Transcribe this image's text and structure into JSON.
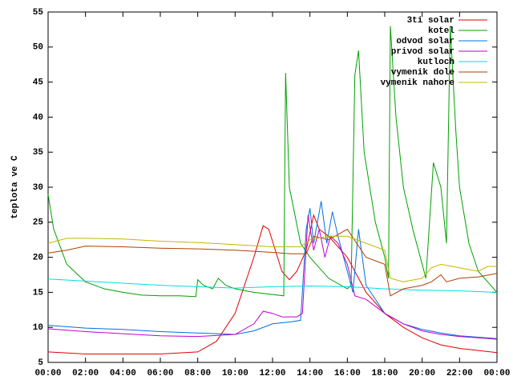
{
  "chart_data": {
    "type": "line",
    "ylabel": "teplota ve C",
    "xlim": [
      0,
      24
    ],
    "ylim": [
      5,
      55
    ],
    "xticks": [
      {
        "value": 0,
        "label": "00:00"
      },
      {
        "value": 2,
        "label": "02:00"
      },
      {
        "value": 4,
        "label": "04:00"
      },
      {
        "value": 6,
        "label": "06:00"
      },
      {
        "value": 8,
        "label": "08:00"
      },
      {
        "value": 10,
        "label": "10:00"
      },
      {
        "value": 12,
        "label": "12:00"
      },
      {
        "value": 14,
        "label": "14:00"
      },
      {
        "value": 16,
        "label": "16:00"
      },
      {
        "value": 18,
        "label": "18:00"
      },
      {
        "value": 20,
        "label": "20:00"
      },
      {
        "value": 22,
        "label": "22:00"
      },
      {
        "value": 24,
        "label": "00:00"
      }
    ],
    "yticks": [
      5,
      10,
      15,
      20,
      25,
      30,
      35,
      40,
      45,
      50,
      55
    ],
    "legend": "top-right",
    "series": [
      {
        "name": "3ti solar",
        "color": "#e00000",
        "x": [
          0,
          2,
          4,
          6,
          8,
          9,
          10,
          11,
          11.5,
          11.8,
          12.5,
          12.9,
          13.3,
          13.8,
          14.2,
          14.5,
          15,
          16,
          17,
          18,
          19,
          20,
          21,
          22,
          23,
          24
        ],
        "values": [
          6.5,
          6.2,
          6.2,
          6.2,
          6.5,
          8,
          12,
          20,
          24.5,
          24,
          18,
          16.8,
          18,
          21,
          26,
          24,
          23,
          20,
          15,
          12,
          10,
          8.5,
          7.5,
          7,
          6.7,
          6.4
        ]
      },
      {
        "name": "kotel",
        "color": "#00a000",
        "x": [
          0,
          0.3,
          1,
          2,
          3,
          4,
          5,
          6,
          7,
          7.9,
          8,
          8.3,
          8.8,
          9.1,
          9.5,
          10,
          11,
          12.6,
          12.7,
          12.9,
          13.5,
          14,
          15,
          16,
          16.2,
          16.4,
          16.6,
          16.9,
          17.5,
          18,
          18.2,
          18.3,
          18.6,
          19,
          19.5,
          20,
          20.2,
          20.6,
          21,
          21.3,
          21.5,
          21.8,
          22,
          22.5,
          23,
          24
        ],
        "values": [
          29,
          24,
          19,
          16.5,
          15.5,
          15,
          14.6,
          14.5,
          14.5,
          14.4,
          16.8,
          16,
          15.5,
          17,
          16,
          15.5,
          15,
          14.5,
          46.3,
          30,
          22,
          20,
          17,
          15.5,
          16,
          46,
          49.5,
          35,
          25,
          20,
          17,
          53,
          40,
          30,
          24,
          19,
          17,
          33.5,
          30,
          22,
          53,
          38,
          30,
          22,
          18,
          15
        ]
      },
      {
        "name": "odvod solar",
        "color": "#0070e0",
        "x": [
          0,
          2,
          4,
          6,
          8,
          10,
          11,
          12,
          13,
          13.5,
          13.8,
          14,
          14.2,
          14.6,
          14.9,
          15.2,
          15.5,
          16,
          16.3,
          16.6,
          17,
          18,
          19,
          20,
          21,
          22,
          23,
          24
        ],
        "values": [
          10.3,
          9.9,
          9.7,
          9.4,
          9.2,
          9,
          9.5,
          10.5,
          10.8,
          11,
          24,
          27,
          22,
          28,
          22,
          26.5,
          23,
          18,
          15,
          24,
          16,
          12,
          10.5,
          9.7,
          9.2,
          8.8,
          8.6,
          8.4
        ]
      },
      {
        "name": "privod solar",
        "color": "#c000d0",
        "x": [
          0,
          2,
          4,
          6,
          8,
          10,
          11,
          11.5,
          12,
          12.5,
          13.3,
          13.6,
          13.9,
          14.2,
          14.5,
          14.8,
          15.1,
          15.5,
          16,
          16.4,
          17,
          18,
          19,
          20,
          21,
          22,
          23,
          24
        ],
        "values": [
          9.8,
          9.4,
          9.1,
          8.8,
          8.7,
          9,
          10.5,
          12.3,
          12,
          11.5,
          11.5,
          12,
          26,
          21,
          24,
          20,
          23,
          22,
          19,
          14.5,
          14,
          12,
          10.5,
          9.5,
          9,
          8.7,
          8.5,
          8.3
        ]
      },
      {
        "name": "kutloch",
        "color": "#00dddd",
        "x": [
          0,
          2,
          4,
          6,
          8,
          10,
          12,
          14,
          16,
          18,
          20,
          22,
          24
        ],
        "values": [
          16.9,
          16.6,
          16.3,
          16,
          15.8,
          15.6,
          15.8,
          15.9,
          15.8,
          15.5,
          15.3,
          15.2,
          15
        ]
      },
      {
        "name": "vymenik dole",
        "color": "#b04000",
        "x": [
          0,
          1,
          2,
          4,
          6,
          8,
          10,
          12,
          13,
          13.8,
          14.2,
          15,
          16,
          16.5,
          17,
          18,
          18.3,
          19,
          20,
          20.5,
          21,
          21.3,
          22,
          23,
          24
        ],
        "values": [
          20.6,
          21,
          21.6,
          21.5,
          21.3,
          21.2,
          21,
          20.7,
          20.5,
          20.5,
          23,
          22.5,
          24,
          22,
          20,
          19,
          14.5,
          15.5,
          16,
          16.5,
          17.5,
          16.5,
          17,
          17.2,
          17.7
        ]
      },
      {
        "name": "vymenik nahore",
        "color": "#c8b400",
        "x": [
          0,
          1,
          2,
          4,
          6,
          8,
          10,
          12,
          13.5,
          14,
          15,
          16,
          17,
          18,
          18.3,
          19,
          20,
          20.5,
          21,
          22,
          23,
          23.5,
          24
        ],
        "values": [
          22,
          22.7,
          22.7,
          22.6,
          22.3,
          22.1,
          21.8,
          21.5,
          21.5,
          22.5,
          23,
          23,
          22,
          21,
          17,
          16.5,
          17,
          18.5,
          19,
          18.5,
          18,
          18.7,
          18.7
        ]
      }
    ]
  }
}
